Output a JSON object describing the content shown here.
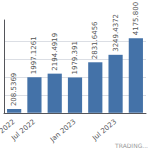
{
  "chart_data": {
    "type": "bar",
    "categories": [
      "2022",
      "Jul 2022",
      null,
      "Jan 2023",
      null,
      "Jul 2023",
      null
    ],
    "values": [
      208.5369,
      1997.1261,
      2194.4919,
      1979.391,
      2831.6456,
      3249.4372,
      4175.8
    ],
    "value_labels": [
      "208.5369",
      "1997.1261",
      "2194.4919",
      "1979.391",
      "2831.6456",
      "3249.4372",
      "4175.800"
    ],
    "data_labels": true,
    "color": "#4472a8",
    "ylim": [
      0,
      5200
    ],
    "yticks": [
      1000,
      2000,
      3000,
      4000
    ],
    "grid": true,
    "tick_labels": "x",
    "annotations": [
      "TRADING..."
    ]
  }
}
